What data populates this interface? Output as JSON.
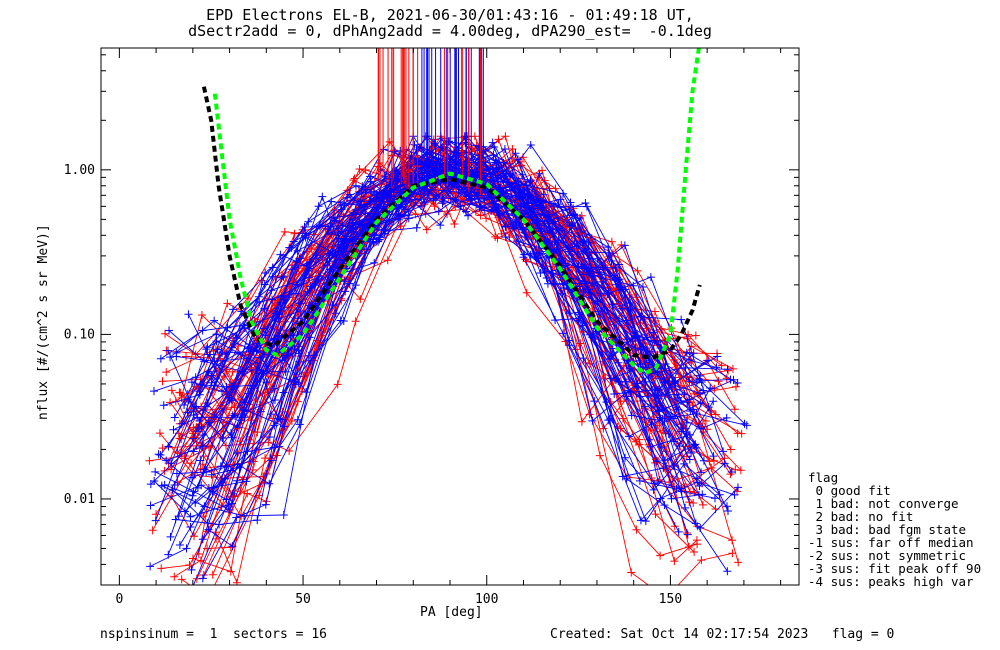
{
  "title": {
    "line1": "EPD Electrons EL-B, 2021-06-30/01:43:16 - 01:49:18 UT,",
    "line2": "dSectr2add = 0, dPhAng2add = 4.00deg, dPA290_est=  -0.1deg"
  },
  "footer": {
    "left": "nspinsinum =  1  sectors = 16",
    "right": "Created: Sat Oct 14 02:17:54 2023   flag = 0"
  },
  "legend": {
    "title": "flag",
    "items": [
      " 0 good fit",
      " 1 bad: not converge",
      " 2 bad: no fit",
      " 3 bad: bad fgm state",
      "-1 sus: far off median",
      "-2 sus: not symmetric",
      "-3 sus: fit peak off 90",
      "-4 sus: peaks high var"
    ]
  },
  "chart_data": {
    "type": "line",
    "xlabel": "PA [deg]",
    "ylabel": "nflux [#/(cm^2 s sr MeV)]",
    "xlim": [
      -5,
      185
    ],
    "ylim": [
      0.003,
      5.5
    ],
    "yscale": "log",
    "x_ticks": [
      0,
      50,
      100,
      150
    ],
    "y_ticks": [
      0.01,
      0.1,
      1.0
    ],
    "y_tick_labels": [
      "0.01",
      "0.10",
      "1.00"
    ],
    "colors": {
      "red": "#ff0000",
      "blue": "#0000ff",
      "green": "#00ff00",
      "black": "#000000"
    },
    "series": [
      {
        "style": "black-dashed-fit",
        "color": "#000000",
        "x": [
          23,
          25,
          27,
          30,
          33,
          37,
          42,
          50,
          60,
          70,
          80,
          90,
          100,
          110,
          120,
          130,
          140,
          145,
          150,
          153,
          156,
          158
        ],
        "y": [
          3.2,
          2.0,
          0.8,
          0.3,
          0.15,
          0.095,
          0.085,
          0.12,
          0.25,
          0.5,
          0.8,
          0.88,
          0.78,
          0.5,
          0.26,
          0.12,
          0.075,
          0.072,
          0.08,
          0.1,
          0.14,
          0.2
        ]
      },
      {
        "style": "green-dashed-fit",
        "color": "#00ff00",
        "x": [
          26,
          28,
          30,
          33,
          36,
          40,
          43,
          50,
          60,
          70,
          80,
          90,
          100,
          110,
          120,
          130,
          140,
          143,
          146,
          150,
          152,
          154,
          156,
          158
        ],
        "y": [
          2.9,
          1.2,
          0.5,
          0.22,
          0.12,
          0.08,
          0.075,
          0.1,
          0.22,
          0.48,
          0.78,
          0.95,
          0.82,
          0.5,
          0.25,
          0.11,
          0.065,
          0.058,
          0.062,
          0.1,
          0.25,
          0.9,
          3.0,
          6.0
        ]
      }
    ],
    "scatter_families": {
      "description": "Many red and blue crossed-marker pitch-angle distributions forming a peaked profile near 90 deg",
      "peak_pa": 90,
      "peak_flux": 1.0
    }
  }
}
